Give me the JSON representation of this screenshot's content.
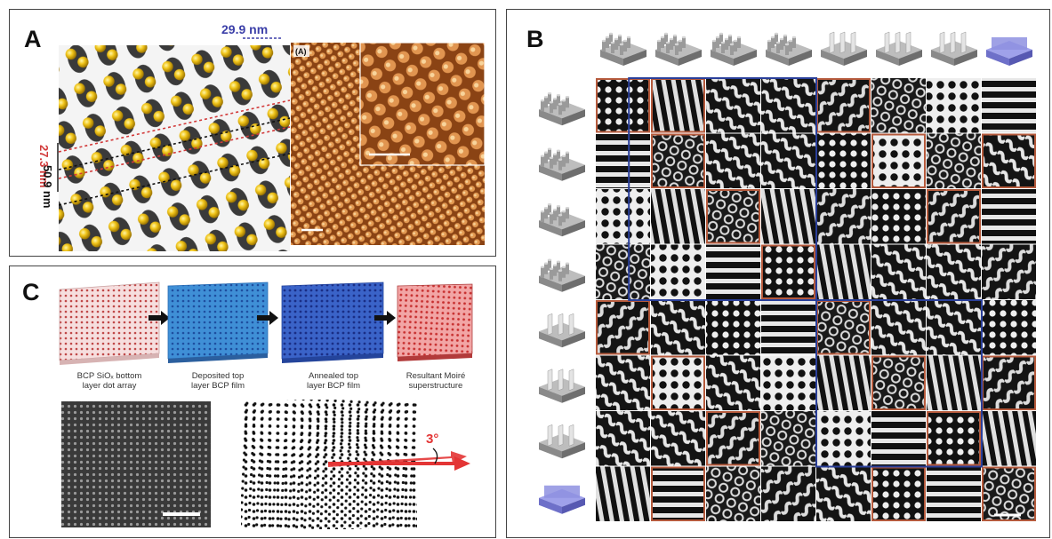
{
  "panel_a": {
    "label": "A",
    "dim_top": "29.9 nm",
    "dim_left_red": "27.3 nm",
    "dim_left_black": "50.9 nm",
    "afm_inset_label": "(A)"
  },
  "panel_b": {
    "label": "B"
  },
  "panel_c": {
    "label": "C",
    "steps": [
      {
        "caption": "BCP SiOₓ bottom\nlayer dot array"
      },
      {
        "caption": "Deposited top\nlayer BCP film"
      },
      {
        "caption": "Annealed top\nlayer BCP film"
      },
      {
        "caption": "Resultant Moiré\nsuperstructure"
      }
    ],
    "angle_label": "3°"
  },
  "colors": {
    "red_dim": "#d23a3a",
    "blue_dim": "#3b3fa8",
    "grid_blue": "#2a3f9a",
    "grid_orange": "#b55a3c",
    "afm_brown": "#b8652a",
    "gold": "#e0b000"
  }
}
